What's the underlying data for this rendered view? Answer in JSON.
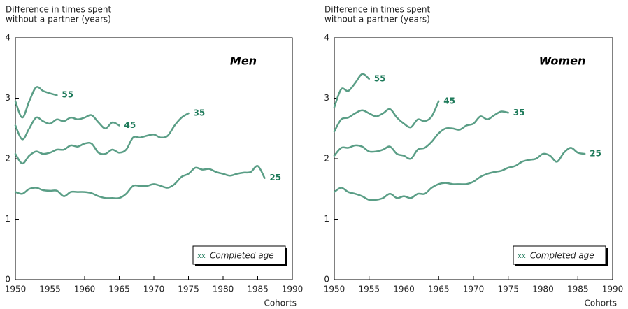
{
  "chart_data": [
    {
      "type": "line",
      "title": "Men",
      "ylabel": [
        "Difference in times spent",
        "without a partner (years)"
      ],
      "xlabel": "Cohorts",
      "legend_marker": "xx",
      "legend_text": "Completed age",
      "x": [
        1950,
        1951,
        1952,
        1953,
        1954,
        1955,
        1956,
        1957,
        1958,
        1959,
        1960,
        1961,
        1962,
        1963,
        1964,
        1965,
        1966,
        1967,
        1968,
        1969,
        1970,
        1971,
        1972,
        1973,
        1974,
        1975,
        1976,
        1977,
        1978,
        1979,
        1980,
        1981,
        1982,
        1983,
        1984,
        1985,
        1986
      ],
      "xlim": [
        1950,
        1990
      ],
      "xticks": [
        1950,
        1955,
        1960,
        1965,
        1970,
        1975,
        1980,
        1985,
        1990
      ],
      "ylim": [
        0,
        4
      ],
      "yticks": [
        0,
        1,
        2,
        3,
        4
      ],
      "series": [
        {
          "name": "55",
          "color": "#5a9e86",
          "values": [
            2.95,
            2.68,
            2.95,
            3.18,
            3.12,
            3.08,
            3.05,
            null,
            null,
            null,
            null,
            null,
            null,
            null,
            null,
            null,
            null,
            null,
            null,
            null,
            null,
            null,
            null,
            null,
            null,
            null,
            null,
            null,
            null,
            null,
            null,
            null,
            null,
            null,
            null,
            null,
            null
          ]
        },
        {
          "name": "45",
          "color": "#5a9e86",
          "values": [
            2.55,
            2.32,
            2.5,
            2.68,
            2.62,
            2.58,
            2.65,
            2.62,
            2.68,
            2.65,
            2.68,
            2.72,
            2.6,
            2.5,
            2.6,
            2.55,
            null,
            null,
            null,
            null,
            null,
            null,
            null,
            null,
            null,
            null,
            null,
            null,
            null,
            null,
            null,
            null,
            null,
            null,
            null,
            null,
            null
          ]
        },
        {
          "name": "35",
          "color": "#5a9e86",
          "values": [
            2.08,
            1.92,
            2.05,
            2.12,
            2.08,
            2.1,
            2.15,
            2.15,
            2.22,
            2.2,
            2.25,
            2.25,
            2.1,
            2.08,
            2.15,
            2.1,
            2.15,
            2.35,
            2.35,
            2.38,
            2.4,
            2.35,
            2.38,
            2.55,
            2.68,
            2.75,
            null,
            null,
            null,
            null,
            null,
            null,
            null,
            null,
            null,
            null,
            null
          ]
        },
        {
          "name": "25",
          "color": "#5a9e86",
          "values": [
            1.45,
            1.42,
            1.5,
            1.52,
            1.48,
            1.47,
            1.47,
            1.38,
            1.45,
            1.45,
            1.45,
            1.43,
            1.38,
            1.35,
            1.35,
            1.35,
            1.42,
            1.55,
            1.55,
            1.55,
            1.58,
            1.55,
            1.52,
            1.58,
            1.7,
            1.75,
            1.85,
            1.82,
            1.83,
            1.78,
            1.75,
            1.72,
            1.75,
            1.77,
            1.78,
            1.88,
            1.68
          ]
        }
      ]
    },
    {
      "type": "line",
      "title": "Women",
      "ylabel": [
        "Difference in times spent",
        "without a partner (years)"
      ],
      "xlabel": "Cohorts",
      "legend_marker": "xx",
      "legend_text": "Completed age",
      "x": [
        1950,
        1951,
        1952,
        1953,
        1954,
        1955,
        1956,
        1957,
        1958,
        1959,
        1960,
        1961,
        1962,
        1963,
        1964,
        1965,
        1966,
        1967,
        1968,
        1969,
        1970,
        1971,
        1972,
        1973,
        1974,
        1975,
        1976,
        1977,
        1978,
        1979,
        1980,
        1981,
        1982,
        1983,
        1984,
        1985,
        1986
      ],
      "xlim": [
        1950,
        1990
      ],
      "xticks": [
        1950,
        1955,
        1960,
        1965,
        1970,
        1975,
        1980,
        1985,
        1990
      ],
      "ylim": [
        0,
        4
      ],
      "yticks": [
        0,
        1,
        2,
        3,
        4
      ],
      "series": [
        {
          "name": "55",
          "color": "#5a9e86",
          "values": [
            2.85,
            3.15,
            3.12,
            3.25,
            3.4,
            3.32,
            null,
            null,
            null,
            null,
            null,
            null,
            null,
            null,
            null,
            null,
            null,
            null,
            null,
            null,
            null,
            null,
            null,
            null,
            null,
            null,
            null,
            null,
            null,
            null,
            null,
            null,
            null,
            null,
            null,
            null,
            null
          ]
        },
        {
          "name": "45",
          "color": "#5a9e86",
          "values": [
            2.45,
            2.65,
            2.68,
            2.75,
            2.8,
            2.75,
            2.7,
            2.75,
            2.82,
            2.68,
            2.58,
            2.52,
            2.65,
            2.62,
            2.7,
            2.95,
            null,
            null,
            null,
            null,
            null,
            null,
            null,
            null,
            null,
            null,
            null,
            null,
            null,
            null,
            null,
            null,
            null,
            null,
            null,
            null,
            null
          ]
        },
        {
          "name": "35",
          "color": "#5a9e86",
          "values": [
            2.05,
            2.18,
            2.18,
            2.22,
            2.2,
            2.12,
            2.12,
            2.15,
            2.2,
            2.08,
            2.05,
            2.0,
            2.15,
            2.18,
            2.28,
            2.42,
            2.5,
            2.5,
            2.48,
            2.55,
            2.58,
            2.7,
            2.65,
            2.72,
            2.78,
            2.76,
            null,
            null,
            null,
            null,
            null,
            null,
            null,
            null,
            null,
            null,
            null
          ]
        },
        {
          "name": "25",
          "color": "#5a9e86",
          "values": [
            1.45,
            1.52,
            1.45,
            1.42,
            1.38,
            1.32,
            1.32,
            1.35,
            1.42,
            1.35,
            1.38,
            1.35,
            1.42,
            1.42,
            1.52,
            1.58,
            1.6,
            1.58,
            1.58,
            1.58,
            1.62,
            1.7,
            1.75,
            1.78,
            1.8,
            1.85,
            1.88,
            1.95,
            1.98,
            2.0,
            2.08,
            2.05,
            1.95,
            2.1,
            2.18,
            2.1,
            2.08
          ]
        }
      ]
    }
  ]
}
